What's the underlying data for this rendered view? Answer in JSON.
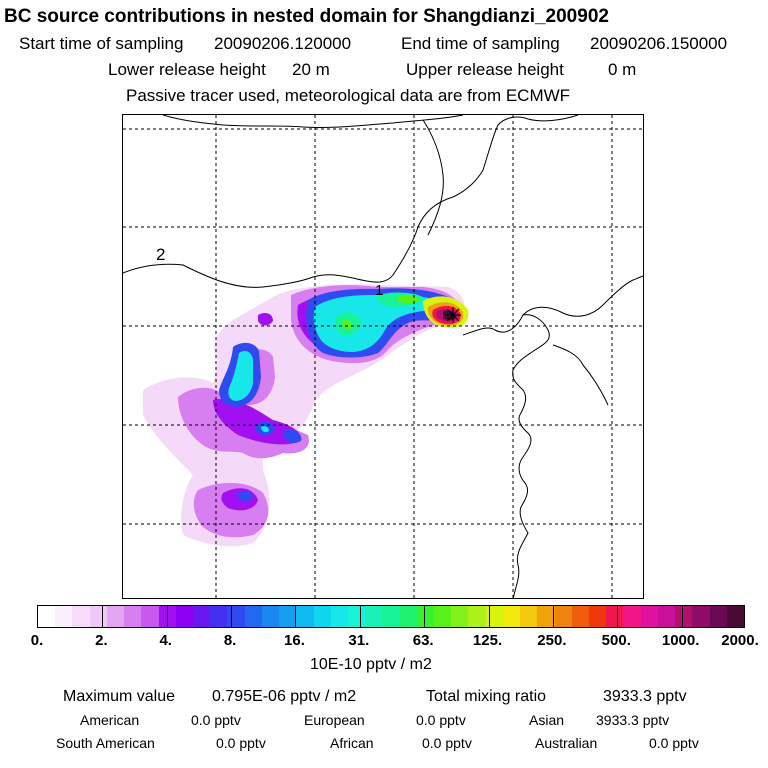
{
  "header": {
    "title": "BC  source contributions in nested domain for Shangdianzi_200902",
    "start_label": "Start time of sampling",
    "start_value": "20090206.120000",
    "end_label": "End time of sampling",
    "end_value": "20090206.150000",
    "lower_label": "Lower release height",
    "lower_value": "20 m",
    "upper_label": "Upper release height",
    "upper_value": "0 m",
    "note": "Passive tracer used, meteorological data are from ECMWF"
  },
  "map": {
    "region_labels": [
      "1",
      "2"
    ],
    "colors": {
      "very_low": "#f3d2f8",
      "low": "#d77ef0",
      "mid_low": "#a20ff0",
      "blue": "#2f4bf0",
      "cyan": "#18e7e9",
      "teal": "#18f29a",
      "green": "#58f21a",
      "yellow": "#d8f30d",
      "orange": "#f0a20d",
      "red": "#f0154f",
      "magenta": "#b2106d",
      "dark": "#4b0a33"
    }
  },
  "colorbar": {
    "tick_labels": [
      "0.",
      "2.",
      "4.",
      "8.",
      "16.",
      "31.",
      "63.",
      "125.",
      "250.",
      "500.",
      "1000.",
      "2000."
    ],
    "segment_colors": [
      "#ffffff",
      "#fbeefd",
      "#f6dcfa",
      "#f0c8f8",
      "#e3a4f2",
      "#d77ef0",
      "#c759f0",
      "#a20ff0",
      "#8a00f0",
      "#6b18f0",
      "#4430f0",
      "#2f4bf0",
      "#2369f0",
      "#1a86f0",
      "#159ff0",
      "#10b9f0",
      "#0fd5ef",
      "#18e7e9",
      "#18f2d5",
      "#18f2b8",
      "#18f29a",
      "#20f26d",
      "#36f22f",
      "#58f21a",
      "#80f21a",
      "#aaf21a",
      "#d8f30d",
      "#f3ea0d",
      "#f3c80d",
      "#f0a20d",
      "#f0830d",
      "#f05d0d",
      "#f0380d",
      "#f0154f",
      "#f01685",
      "#e010a0",
      "#c8109a",
      "#b2106d",
      "#8e0c68",
      "#6a0a55",
      "#4b0a33"
    ],
    "unit": "10E-10 pptv / m2"
  },
  "stats": {
    "max_label": "Maximum value",
    "max_value": "0.795E-06 pptv / m2",
    "total_label": "Total mixing ratio",
    "total_value": "3933.3 pptv",
    "regions": [
      {
        "name": "American",
        "value": "0.0 pptv"
      },
      {
        "name": "European",
        "value": "0.0 pptv"
      },
      {
        "name": "Asian",
        "value": "3933.3 pptv"
      },
      {
        "name": "South American",
        "value": "0.0 pptv"
      },
      {
        "name": "African",
        "value": "0.0 pptv"
      },
      {
        "name": "Australian",
        "value": "0.0 pptv"
      }
    ]
  }
}
